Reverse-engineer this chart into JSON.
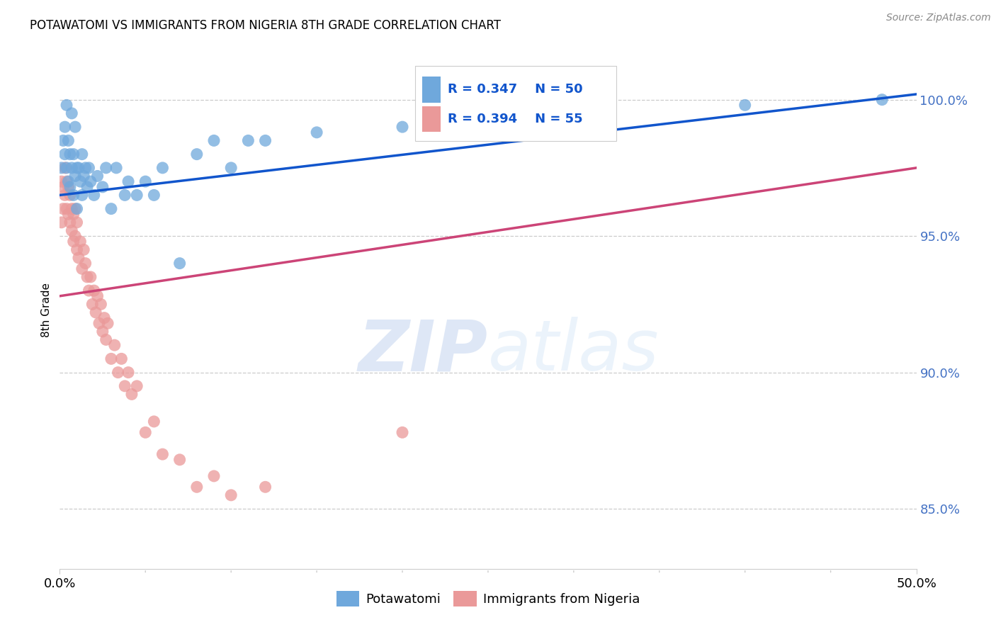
{
  "title": "POTAWATOMI VS IMMIGRANTS FROM NIGERIA 8TH GRADE CORRELATION CHART",
  "source": "Source: ZipAtlas.com",
  "ylabel": "8th Grade",
  "ytick_labels": [
    "100.0%",
    "95.0%",
    "90.0%",
    "85.0%"
  ],
  "ytick_values": [
    1.0,
    0.95,
    0.9,
    0.85
  ],
  "xlim": [
    0.0,
    0.5
  ],
  "ylim": [
    0.828,
    1.018
  ],
  "blue_R": 0.347,
  "blue_N": 50,
  "pink_R": 0.394,
  "pink_N": 55,
  "blue_color": "#6fa8dc",
  "pink_color": "#ea9999",
  "blue_line_color": "#1155cc",
  "pink_line_color": "#cc4477",
  "legend_text_color": "#1155cc",
  "watermark_zip": "ZIP",
  "watermark_atlas": "atlas",
  "blue_line": [
    0.0,
    0.965,
    0.5,
    1.002
  ],
  "pink_line": [
    0.0,
    0.928,
    0.5,
    0.975
  ],
  "blue_x": [
    0.001,
    0.002,
    0.003,
    0.003,
    0.004,
    0.004,
    0.005,
    0.005,
    0.006,
    0.006,
    0.007,
    0.007,
    0.008,
    0.008,
    0.009,
    0.009,
    0.01,
    0.01,
    0.011,
    0.012,
    0.013,
    0.013,
    0.014,
    0.015,
    0.016,
    0.017,
    0.018,
    0.02,
    0.022,
    0.025,
    0.027,
    0.03,
    0.033,
    0.038,
    0.04,
    0.045,
    0.05,
    0.055,
    0.06,
    0.07,
    0.08,
    0.09,
    0.1,
    0.11,
    0.12,
    0.15,
    0.2,
    0.3,
    0.4,
    0.48
  ],
  "blue_y": [
    0.975,
    0.985,
    0.99,
    0.98,
    0.975,
    0.998,
    0.97,
    0.985,
    0.968,
    0.98,
    0.975,
    0.995,
    0.965,
    0.98,
    0.972,
    0.99,
    0.975,
    0.96,
    0.975,
    0.97,
    0.965,
    0.98,
    0.972,
    0.975,
    0.968,
    0.975,
    0.97,
    0.965,
    0.972,
    0.968,
    0.975,
    0.96,
    0.975,
    0.965,
    0.97,
    0.965,
    0.97,
    0.965,
    0.975,
    0.94,
    0.98,
    0.985,
    0.975,
    0.985,
    0.985,
    0.988,
    0.99,
    0.995,
    0.998,
    1.0
  ],
  "pink_x": [
    0.001,
    0.001,
    0.002,
    0.002,
    0.003,
    0.003,
    0.004,
    0.004,
    0.005,
    0.005,
    0.006,
    0.006,
    0.007,
    0.007,
    0.008,
    0.008,
    0.009,
    0.009,
    0.01,
    0.01,
    0.011,
    0.012,
    0.013,
    0.014,
    0.015,
    0.016,
    0.017,
    0.018,
    0.019,
    0.02,
    0.021,
    0.022,
    0.023,
    0.024,
    0.025,
    0.026,
    0.027,
    0.028,
    0.03,
    0.032,
    0.034,
    0.036,
    0.038,
    0.04,
    0.042,
    0.045,
    0.05,
    0.055,
    0.06,
    0.07,
    0.08,
    0.09,
    0.1,
    0.12,
    0.2
  ],
  "pink_y": [
    0.97,
    0.955,
    0.968,
    0.96,
    0.965,
    0.975,
    0.96,
    0.97,
    0.958,
    0.968,
    0.955,
    0.965,
    0.952,
    0.96,
    0.948,
    0.958,
    0.95,
    0.96,
    0.945,
    0.955,
    0.942,
    0.948,
    0.938,
    0.945,
    0.94,
    0.935,
    0.93,
    0.935,
    0.925,
    0.93,
    0.922,
    0.928,
    0.918,
    0.925,
    0.915,
    0.92,
    0.912,
    0.918,
    0.905,
    0.91,
    0.9,
    0.905,
    0.895,
    0.9,
    0.892,
    0.895,
    0.878,
    0.882,
    0.87,
    0.868,
    0.858,
    0.862,
    0.855,
    0.858,
    0.878
  ]
}
